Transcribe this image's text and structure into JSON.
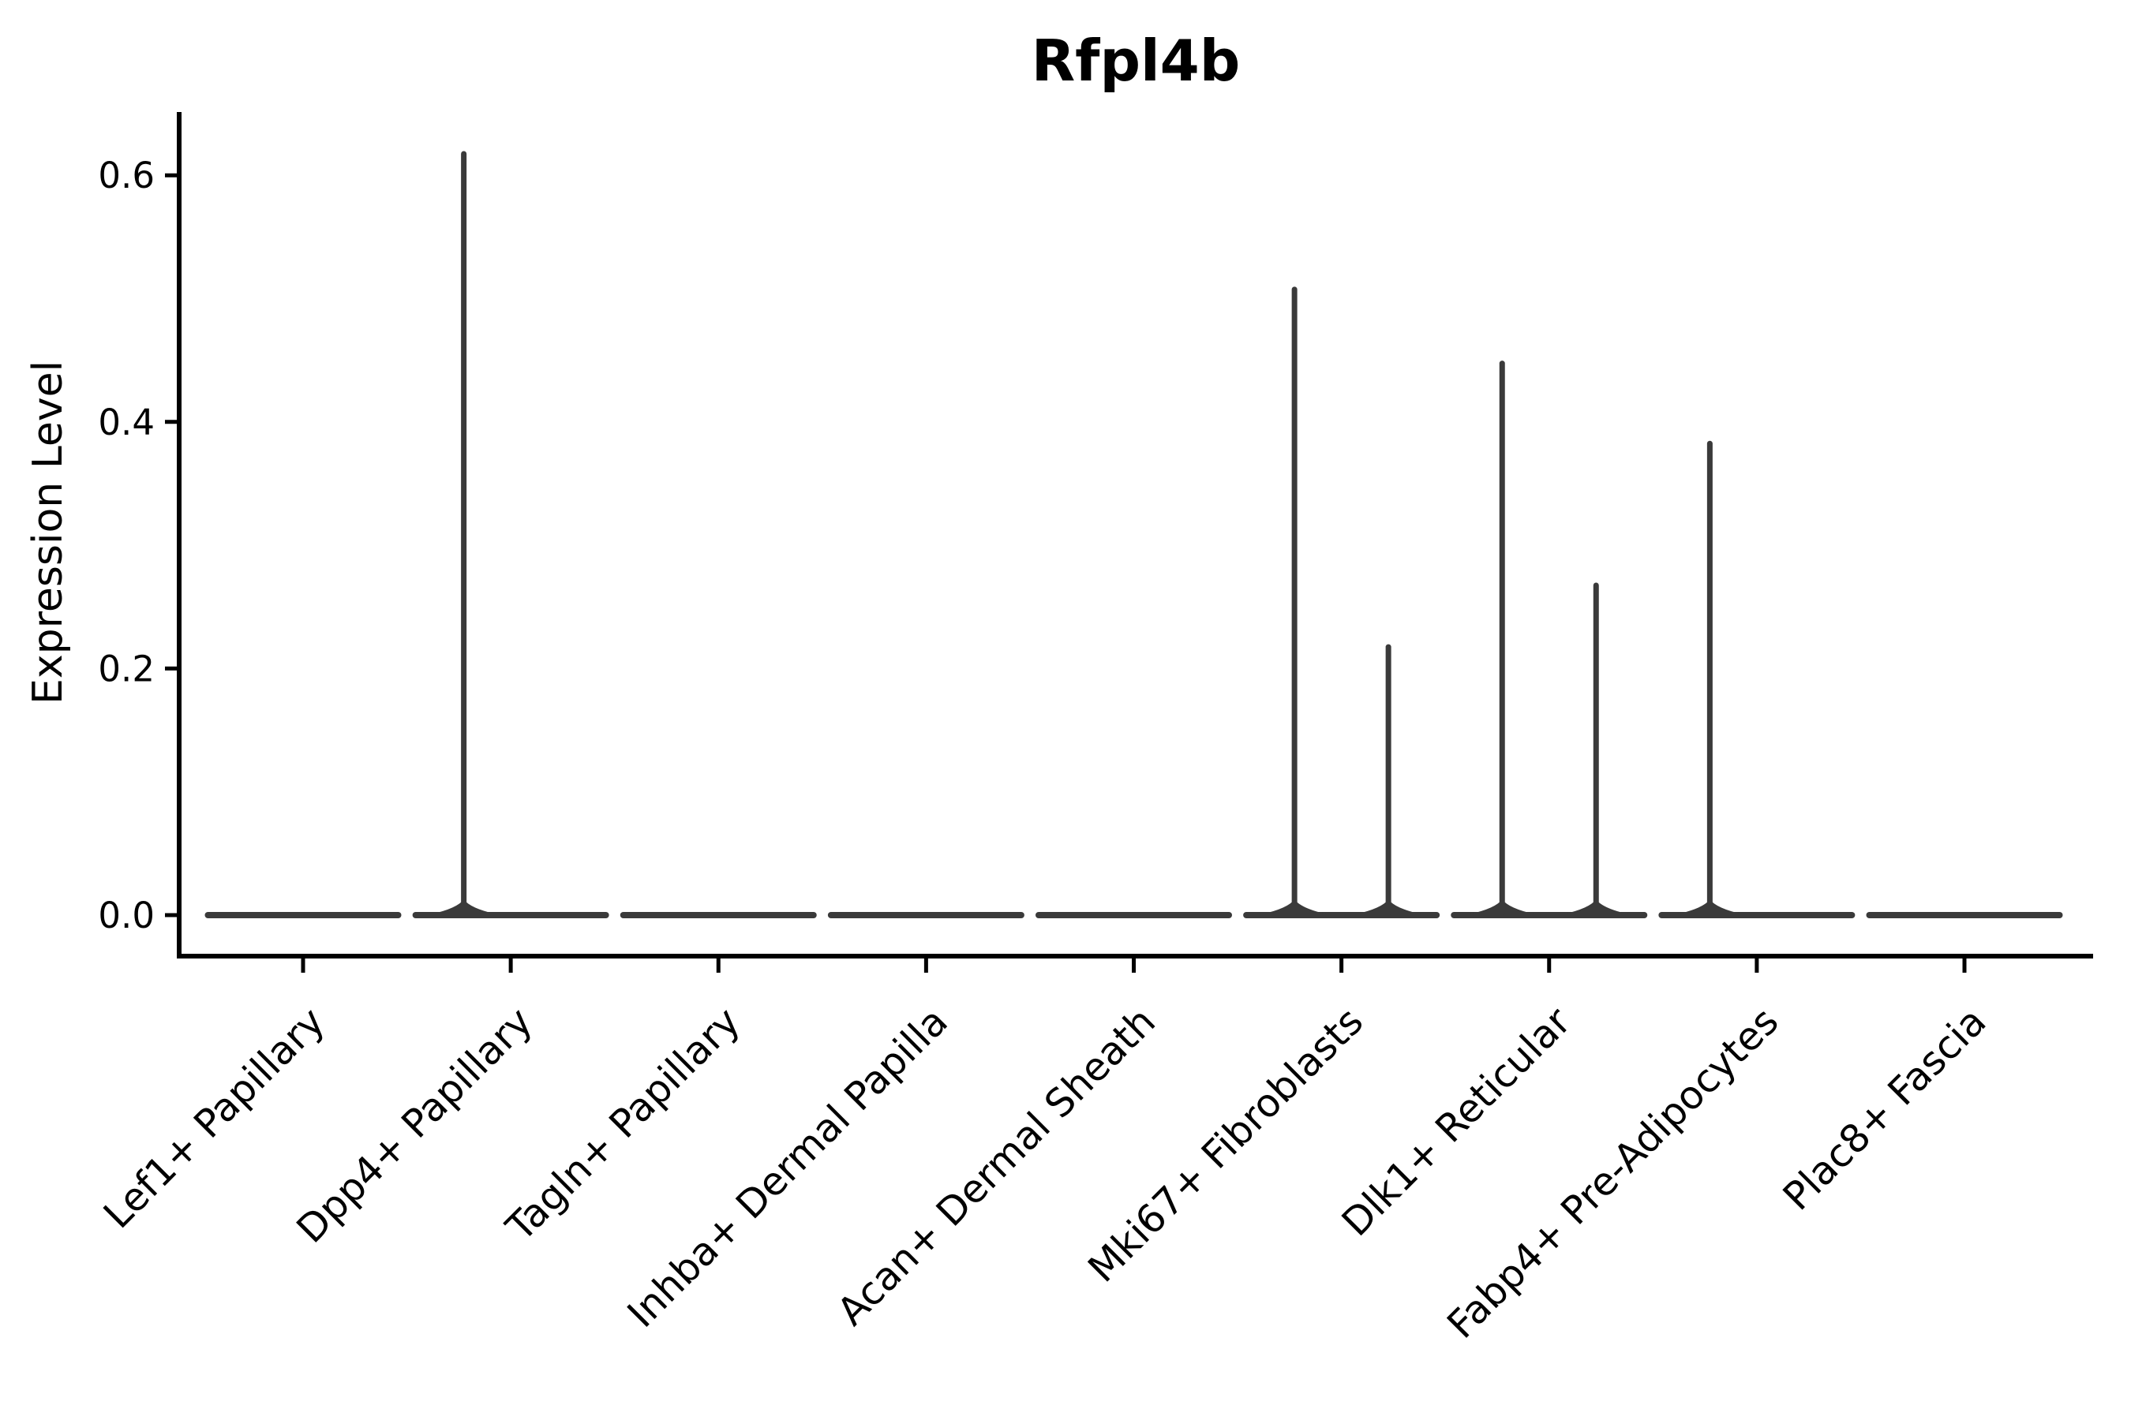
{
  "chart_data": {
    "type": "violin",
    "title": "Rfpl4b",
    "xlabel": "",
    "ylabel": "Expression Level",
    "ylim": [
      0,
      0.655
    ],
    "yticks": [
      0,
      0.2,
      0.4,
      0.6
    ],
    "ytick_labels": [
      "0.0",
      "0.2",
      "0.4",
      "0.6"
    ],
    "x_tick_rotation_deg": 45,
    "grid": "off",
    "legend": "none",
    "baseline_value": 0.0,
    "categories": [
      "Lef1+ Papillary",
      "Dpp4+ Papillary",
      "Tagln+ Papillary",
      "Inhba+ Dermal Papilla",
      "Acan+ Dermal Sheath",
      "Mki67+ Fibroblasts",
      "Dlk1+ Reticular",
      "Fabp4+ Pre-Adipocytes",
      "Plac8+ Fascia"
    ],
    "violins": [
      {
        "category": "Lef1+ Papillary",
        "spikes": []
      },
      {
        "category": "Dpp4+ Papillary",
        "spikes": [
          {
            "side": "left",
            "max_value": 0.62
          }
        ]
      },
      {
        "category": "Tagln+ Papillary",
        "spikes": []
      },
      {
        "category": "Inhba+ Dermal Papilla",
        "spikes": []
      },
      {
        "category": "Acan+ Dermal Sheath",
        "spikes": []
      },
      {
        "category": "Mki67+ Fibroblasts",
        "spikes": [
          {
            "side": "left",
            "max_value": 0.51
          },
          {
            "side": "right",
            "max_value": 0.22
          }
        ]
      },
      {
        "category": "Dlk1+ Reticular",
        "spikes": [
          {
            "side": "left",
            "max_value": 0.45
          },
          {
            "side": "right",
            "max_value": 0.27
          }
        ]
      },
      {
        "category": "Fabp4+ Pre-Adipocytes",
        "spikes": [
          {
            "side": "left",
            "max_value": 0.385
          }
        ]
      },
      {
        "category": "Plac8+ Fascia",
        "spikes": []
      }
    ],
    "colors": {
      "violin": "#3a3a3a",
      "axis": "#000000",
      "text": "#000000",
      "background": "#ffffff"
    }
  }
}
